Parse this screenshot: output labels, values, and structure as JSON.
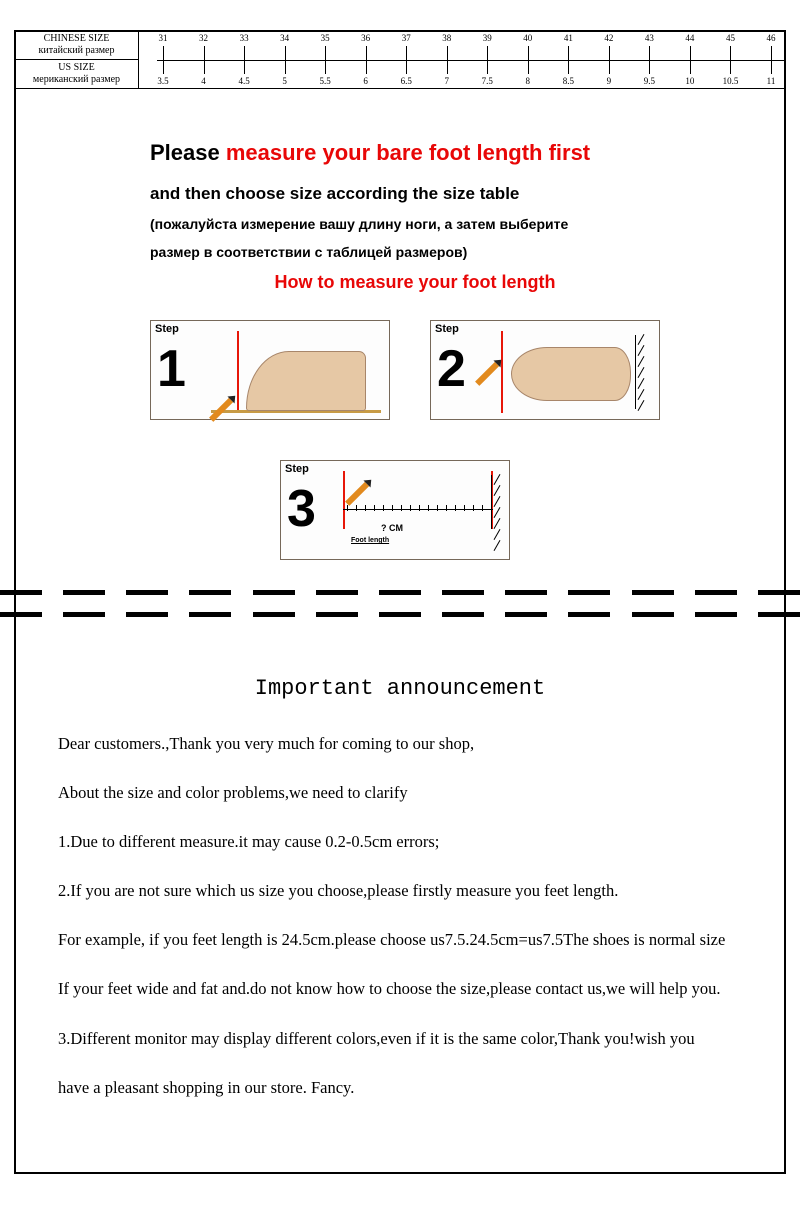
{
  "table": {
    "header1_line1": "CHINESE SIZE",
    "header1_line2": "китайский размер",
    "header2_line1": "US SIZE",
    "header2_line2": "мериканский размер",
    "chinese_sizes": [
      "31",
      "32",
      "33",
      "34",
      "35",
      "36",
      "37",
      "38",
      "39",
      "40",
      "41",
      "42",
      "43",
      "44",
      "45",
      "46"
    ],
    "us_sizes": [
      "3.5",
      "4",
      "4.5",
      "5",
      "5.5",
      "6",
      "6.5",
      "7",
      "7.5",
      "8",
      "8.5",
      "9",
      "9.5",
      "10",
      "10.5",
      "11"
    ]
  },
  "instruction": {
    "please": "Please ",
    "measure_red": "measure your bare foot length first",
    "line2": "and then choose size according the size table",
    "line3": "(пожалуйста измерение вашу длину ноги, а затем выберите",
    "line4": "размер в соответствии с таблицей размеров)",
    "howto": "How to measure your foot length"
  },
  "steps": {
    "tag": "Step",
    "s1": "1",
    "s2": "2",
    "s3": "3",
    "qcm": "? CM",
    "footlen": "Foot length"
  },
  "announcement": {
    "title": "Important announcement",
    "p1": "Dear customers.,Thank you very much for coming to our shop,",
    "p2": "About the size and color problems,we need to clarify",
    "p3": "1.Due to different measure.it may cause 0.2-0.5cm errors;",
    "p4": "2.If you are not sure which us size you choose,please firstly measure you feet length.",
    "p5": "For example, if you feet length is 24.5cm.please choose us7.5.24.5cm=us7.5The shoes is normal size",
    "p6": "If your feet wide and fat and.do not know how to choose the size,please contact us,we will help you.",
    "p7": "3.Different monitor may display different colors,even if it is the same color,Thank you!wish you",
    "p8": "have a pleasant shopping in  our store. Fancy."
  },
  "colors": {
    "red": "#e80707",
    "skin": "#e6c8a5",
    "orange": "#e28a1e",
    "ground": "#c79a44"
  }
}
